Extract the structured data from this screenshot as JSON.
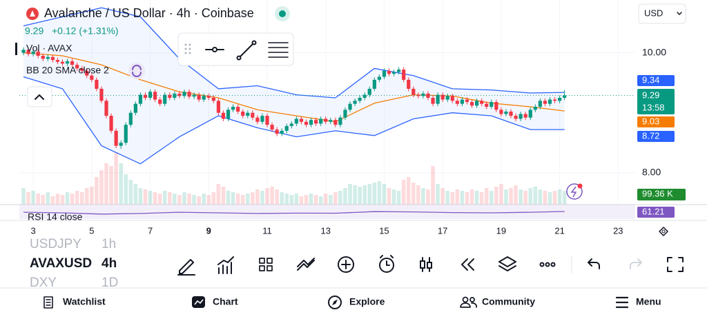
{
  "header": {
    "title": "Avalanche / US Dollar · 4h · Coinbase",
    "price": "9.29",
    "change": "+0.12 (+1.31%)",
    "currency": "USD",
    "indicators": [
      "Vol · AVAX",
      "BB 20 SMA close 2"
    ],
    "rsi_label": "RSI 14 close"
  },
  "chart_data": {
    "type": "candlestick",
    "open": [
      10.0,
      10.05,
      9.98,
      10.02,
      9.95,
      9.9,
      9.93,
      9.88,
      9.85,
      9.82,
      9.86,
      9.8,
      9.74,
      9.7,
      9.62,
      9.55,
      9.4,
      9.2,
      8.95,
      8.7,
      8.45,
      8.5,
      8.8,
      9.0,
      9.15,
      9.3,
      9.25,
      9.35,
      9.22,
      9.15,
      9.3,
      9.25,
      9.32,
      9.28,
      9.35,
      9.27,
      9.3,
      9.22,
      9.28,
      9.25,
      9.2,
      9.0,
      8.9,
      9.05,
      9.1,
      9.02,
      8.95,
      9.0,
      8.92,
      8.85,
      8.95,
      8.8,
      8.72,
      8.65,
      8.7,
      8.78,
      8.82,
      8.9,
      8.85,
      8.8,
      8.88,
      8.82,
      8.9,
      8.85,
      8.88,
      8.8,
      8.92,
      9.05,
      9.15,
      9.2,
      9.25,
      9.3,
      9.4,
      9.55,
      9.6,
      9.7,
      9.65,
      9.68,
      9.72,
      9.55,
      9.4,
      9.3,
      9.28,
      9.32,
      9.25,
      9.15,
      9.3,
      9.22,
      9.28,
      9.2,
      9.15,
      9.22,
      9.18,
      9.12,
      9.2,
      9.15,
      9.1,
      9.18,
      9.05,
      8.98,
      9.02,
      8.95,
      8.9,
      8.98,
      8.92,
      9.05,
      9.1,
      9.2,
      9.15,
      9.22,
      9.2,
      9.25
    ],
    "high": [
      10.09,
      10.09,
      10.06,
      10.06,
      9.99,
      9.97,
      9.97,
      9.92,
      9.89,
      9.9,
      9.9,
      9.84,
      9.78,
      9.74,
      9.66,
      9.59,
      9.44,
      9.24,
      8.99,
      8.74,
      8.54,
      8.84,
      9.04,
      9.19,
      9.34,
      9.34,
      9.39,
      9.39,
      9.26,
      9.34,
      9.34,
      9.36,
      9.36,
      9.39,
      9.39,
      9.34,
      9.34,
      9.32,
      9.32,
      9.29,
      9.24,
      9.04,
      9.09,
      9.14,
      9.14,
      9.06,
      9.04,
      9.04,
      8.96,
      8.99,
      8.99,
      8.84,
      8.76,
      8.74,
      8.82,
      8.86,
      8.94,
      8.94,
      8.89,
      8.92,
      8.92,
      8.94,
      8.94,
      8.92,
      8.92,
      8.96,
      9.09,
      9.19,
      9.24,
      9.29,
      9.34,
      9.44,
      9.59,
      9.64,
      9.74,
      9.74,
      9.72,
      9.76,
      9.76,
      9.59,
      9.44,
      9.34,
      9.36,
      9.36,
      9.29,
      9.34,
      9.34,
      9.32,
      9.32,
      9.24,
      9.26,
      9.26,
      9.22,
      9.24,
      9.24,
      9.19,
      9.22,
      9.22,
      9.09,
      9.06,
      9.06,
      8.99,
      9.02,
      9.02,
      9.09,
      9.14,
      9.24,
      9.24,
      9.26,
      9.26,
      9.29,
      9.38
    ],
    "low": [
      9.96,
      9.94,
      9.94,
      9.91,
      9.86,
      9.86,
      9.84,
      9.81,
      9.78,
      9.78,
      9.76,
      9.7,
      9.66,
      9.58,
      9.51,
      9.36,
      9.16,
      8.91,
      8.66,
      8.41,
      8.4,
      8.46,
      8.76,
      8.96,
      9.11,
      9.21,
      9.21,
      9.18,
      9.11,
      9.11,
      9.21,
      9.21,
      9.24,
      9.24,
      9.23,
      9.23,
      9.18,
      9.18,
      9.21,
      9.16,
      8.96,
      8.86,
      8.86,
      9.01,
      8.98,
      8.91,
      8.91,
      8.88,
      8.81,
      8.81,
      8.76,
      8.68,
      8.61,
      8.61,
      8.66,
      8.74,
      8.78,
      8.81,
      8.76,
      8.76,
      8.78,
      8.78,
      8.81,
      8.81,
      8.76,
      8.76,
      8.88,
      9.01,
      9.11,
      9.16,
      9.21,
      9.26,
      9.36,
      9.51,
      9.56,
      9.61,
      9.61,
      9.64,
      9.51,
      9.36,
      9.26,
      9.24,
      9.24,
      9.21,
      9.11,
      9.11,
      9.18,
      9.18,
      9.16,
      9.11,
      9.11,
      9.14,
      9.08,
      9.08,
      9.11,
      9.06,
      9.06,
      9.01,
      8.94,
      8.94,
      8.91,
      8.86,
      8.86,
      8.88,
      8.88,
      9.01,
      9.06,
      9.11,
      9.11,
      9.16,
      9.16,
      9.21
    ],
    "close": [
      10.05,
      9.98,
      10.02,
      9.95,
      9.9,
      9.93,
      9.88,
      9.85,
      9.82,
      9.86,
      9.8,
      9.74,
      9.7,
      9.62,
      9.55,
      9.4,
      9.2,
      8.95,
      8.7,
      8.45,
      8.5,
      8.8,
      9.0,
      9.15,
      9.3,
      9.25,
      9.35,
      9.22,
      9.15,
      9.3,
      9.25,
      9.32,
      9.28,
      9.35,
      9.27,
      9.3,
      9.22,
      9.28,
      9.25,
      9.2,
      9.0,
      8.9,
      9.05,
      9.1,
      9.02,
      8.95,
      9.0,
      8.92,
      8.85,
      8.95,
      8.8,
      8.72,
      8.65,
      8.7,
      8.78,
      8.82,
      8.9,
      8.85,
      8.8,
      8.88,
      8.82,
      8.9,
      8.85,
      8.88,
      8.8,
      8.92,
      9.05,
      9.15,
      9.2,
      9.25,
      9.3,
      9.4,
      9.55,
      9.6,
      9.7,
      9.65,
      9.68,
      9.72,
      9.55,
      9.4,
      9.3,
      9.28,
      9.32,
      9.25,
      9.15,
      9.3,
      9.22,
      9.28,
      9.2,
      9.15,
      9.22,
      9.18,
      9.12,
      9.2,
      9.15,
      9.1,
      9.18,
      9.05,
      8.98,
      9.02,
      8.95,
      8.9,
      8.98,
      8.92,
      9.05,
      9.1,
      9.2,
      9.15,
      9.22,
      9.2,
      9.25,
      9.29
    ],
    "volume": [
      120,
      90,
      100,
      80,
      70,
      90,
      60,
      80,
      70,
      90,
      80,
      100,
      90,
      120,
      130,
      200,
      250,
      300,
      280,
      380,
      300,
      220,
      180,
      150,
      120,
      110,
      100,
      90,
      80,
      100,
      90,
      80,
      70,
      90,
      80,
      70,
      60,
      80,
      70,
      90,
      150,
      130,
      100,
      90,
      80,
      70,
      80,
      90,
      110,
      100,
      120,
      130,
      110,
      90,
      80,
      70,
      80,
      60,
      70,
      80,
      70,
      60,
      80,
      70,
      90,
      100,
      120,
      150,
      140,
      130,
      140,
      150,
      160,
      170,
      150,
      120,
      110,
      100,
      180,
      200,
      160,
      140,
      120,
      110,
      280,
      150,
      120,
      100,
      90,
      110,
      100,
      90,
      110,
      100,
      90,
      120,
      100,
      130,
      150,
      110,
      120,
      140,
      110,
      100,
      120,
      130,
      110,
      100,
      90,
      100,
      110,
      99.36
    ],
    "volume_label": "99.36 K",
    "volume_lim": [
      0,
      400
    ],
    "countdown": "13:58",
    "ylim": [
      7.47,
      10.88
    ],
    "yticks": [
      {
        "value": 10,
        "label": "10.00"
      },
      {
        "value": 8,
        "label": "8.00"
      }
    ],
    "xticks": [
      {
        "value": 2,
        "label": "3"
      },
      {
        "value": 14,
        "label": "5"
      },
      {
        "value": 26,
        "label": "7"
      },
      {
        "value": 38,
        "label": "9"
      },
      {
        "value": 50,
        "label": "11"
      },
      {
        "value": 62,
        "label": "13"
      },
      {
        "value": 74,
        "label": "15"
      },
      {
        "value": 86,
        "label": "17"
      },
      {
        "value": 98,
        "label": "19"
      },
      {
        "value": 110,
        "label": "21"
      },
      {
        "value": 122,
        "label": "23"
      }
    ],
    "bands": {
      "x": [
        0,
        8,
        16,
        24,
        32,
        40,
        48,
        56,
        64,
        72,
        80,
        88,
        96,
        104,
        111
      ],
      "upper": [
        10.45,
        10.6,
        10.75,
        10.6,
        9.9,
        9.4,
        9.45,
        9.3,
        9.25,
        9.74,
        9.62,
        9.4,
        9.38,
        9.33,
        9.34
      ],
      "middle": [
        10.0,
        9.95,
        9.8,
        9.55,
        9.35,
        9.25,
        9.05,
        8.95,
        8.85,
        9.16,
        9.3,
        9.28,
        9.16,
        9.1,
        9.03
      ],
      "lower": [
        9.6,
        9.4,
        8.45,
        8.15,
        8.6,
        8.95,
        8.75,
        8.6,
        8.7,
        8.62,
        8.9,
        9.0,
        8.95,
        8.72,
        8.72
      ],
      "band_color": "#2962ff",
      "middle_color": "#f57c00"
    },
    "rsi": {
      "values": [
        55,
        50,
        40,
        45,
        55,
        50,
        45,
        48,
        47,
        60,
        58,
        52,
        50,
        55,
        61.21
      ],
      "ylim": [
        0,
        100
      ],
      "color": "#7e57c2"
    },
    "colors": {
      "up": "#089981",
      "down": "#f23645"
    }
  },
  "symbols": [
    {
      "symbol": "USDJPY",
      "interval": "1h"
    },
    {
      "symbol": "AVAXUSD",
      "interval": "4h"
    },
    {
      "symbol": "DXY",
      "interval": "1D"
    }
  ],
  "nav": [
    "Watchlist",
    "Chart",
    "Explore",
    "Community",
    "Menu"
  ]
}
